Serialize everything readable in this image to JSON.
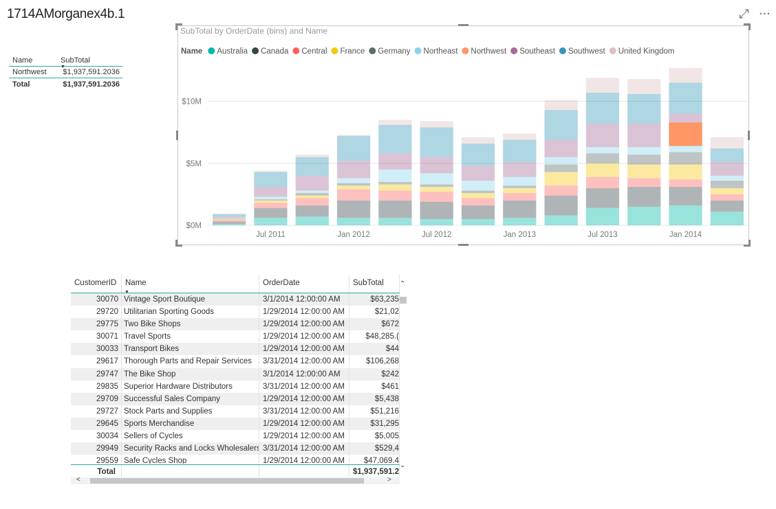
{
  "page": {
    "title": "1714AMorganex4b.1"
  },
  "top_icons": {
    "focus": "focus-mode-icon",
    "more": "more-options-icon",
    "focus_glyph": "⤢",
    "more_glyph": "···"
  },
  "mini_table": {
    "headers": [
      "Name",
      "SubTotal"
    ],
    "rows": [
      {
        "name": "Northwest",
        "subtotal": "$1,937,591.2036"
      }
    ],
    "total_label": "Total",
    "total_value": "$1,937,591.2036"
  },
  "chart": {
    "title": "SubTotal by OrderDate (bins) and Name",
    "legend_title": "Name"
  },
  "chart_data": {
    "type": "bar",
    "stacked": true,
    "title": "SubTotal by OrderDate (bins) and Name",
    "xlabel": "",
    "ylabel": "",
    "ylim": [
      0,
      12800000
    ],
    "yticks": [
      0,
      5000000,
      10000000
    ],
    "ytick_labels": [
      "$0M",
      "$5M",
      "$10M"
    ],
    "xtick_labels": [
      "Jul 2011",
      "Jan 2012",
      "Jul 2012",
      "Jan 2013",
      "Jul 2013",
      "Jan 2014"
    ],
    "xtick_after_bin": [
      1.5,
      3.5,
      5.5,
      7.5,
      9.5,
      11.5
    ],
    "categories": [
      "bin1",
      "bin2",
      "bin3",
      "bin4",
      "bin5",
      "bin6",
      "bin7",
      "bin8",
      "bin9",
      "bin10",
      "bin11",
      "bin12",
      "bin13"
    ],
    "legend_position": "top-left",
    "grid": true,
    "highlight_series": "Northwest",
    "series": [
      {
        "name": "Australia",
        "color": "#01b8aa",
        "values": [
          100000,
          600000,
          700000,
          600000,
          600000,
          500000,
          500000,
          600000,
          800000,
          1400000,
          1500000,
          1600000,
          1100000
        ]
      },
      {
        "name": "Canada",
        "color": "#374649",
        "values": [
          200000,
          800000,
          900000,
          1400000,
          1400000,
          1400000,
          1100000,
          1400000,
          1600000,
          1600000,
          1600000,
          1500000,
          900000
        ]
      },
      {
        "name": "Central",
        "color": "#fd625e",
        "values": [
          150000,
          400000,
          600000,
          900000,
          800000,
          800000,
          600000,
          600000,
          800000,
          900000,
          700000,
          600000,
          500000
        ]
      },
      {
        "name": "France",
        "color": "#f2c80f",
        "values": [
          50000,
          200000,
          200000,
          300000,
          500000,
          400000,
          400000,
          400000,
          1100000,
          1100000,
          1100000,
          1200000,
          500000
        ]
      },
      {
        "name": "Germany",
        "color": "#5f6b6d",
        "values": [
          50000,
          100000,
          200000,
          200000,
          200000,
          200000,
          200000,
          200000,
          600000,
          800000,
          800000,
          1000000,
          600000
        ]
      },
      {
        "name": "Northeast",
        "color": "#8ad4eb",
        "values": [
          50000,
          200000,
          200000,
          400000,
          1000000,
          900000,
          800000,
          700000,
          600000,
          500000,
          600000,
          500000,
          400000
        ]
      },
      {
        "name": "Northwest",
        "color": "#fe9666",
        "values": [
          0,
          0,
          0,
          0,
          0,
          0,
          0,
          0,
          0,
          0,
          0,
          1900000,
          0
        ]
      },
      {
        "name": "Southeast",
        "color": "#a66999",
        "values": [
          100000,
          800000,
          1200000,
          1400000,
          1300000,
          1300000,
          1200000,
          1200000,
          1400000,
          1900000,
          1900000,
          700000,
          1100000
        ]
      },
      {
        "name": "Southwest",
        "color": "#3599b8",
        "values": [
          200000,
          1200000,
          1500000,
          2000000,
          2300000,
          2400000,
          1800000,
          1800000,
          2400000,
          2500000,
          2400000,
          2500000,
          1100000
        ]
      },
      {
        "name": "United Kingdom",
        "color": "#dfbfbf",
        "values": [
          50000,
          100000,
          200000,
          100000,
          400000,
          500000,
          500000,
          500000,
          800000,
          1200000,
          1200000,
          1200000,
          900000
        ]
      }
    ]
  },
  "grid": {
    "headers": [
      "CustomerID",
      "Name",
      "OrderDate",
      "SubTotal"
    ],
    "rows": [
      {
        "id": "30070",
        "name": "Vintage Sport Boutique",
        "date": "3/1/2014 12:00:00 AM",
        "subtotal": "$63,235"
      },
      {
        "id": "29720",
        "name": "Utilitarian Sporting Goods",
        "date": "1/29/2014 12:00:00 AM",
        "subtotal": "$21,02"
      },
      {
        "id": "29775",
        "name": "Two Bike Shops",
        "date": "1/29/2014 12:00:00 AM",
        "subtotal": "$672"
      },
      {
        "id": "30071",
        "name": "Travel Sports",
        "date": "1/29/2014 12:00:00 AM",
        "subtotal": "$48,285.("
      },
      {
        "id": "30033",
        "name": "Transport Bikes",
        "date": "1/29/2014 12:00:00 AM",
        "subtotal": "$44"
      },
      {
        "id": "29617",
        "name": "Thorough Parts and Repair Services",
        "date": "3/31/2014 12:00:00 AM",
        "subtotal": "$106,268"
      },
      {
        "id": "29747",
        "name": "The Bike Shop",
        "date": "3/1/2014 12:00:00 AM",
        "subtotal": "$242"
      },
      {
        "id": "29835",
        "name": "Superior Hardware Distributors",
        "date": "3/31/2014 12:00:00 AM",
        "subtotal": "$461"
      },
      {
        "id": "29709",
        "name": "Successful Sales Company",
        "date": "1/29/2014 12:00:00 AM",
        "subtotal": "$5,438"
      },
      {
        "id": "29727",
        "name": "Stock Parts and Supplies",
        "date": "3/31/2014 12:00:00 AM",
        "subtotal": "$51,216"
      },
      {
        "id": "29645",
        "name": "Sports Merchandise",
        "date": "1/29/2014 12:00:00 AM",
        "subtotal": "$31,295"
      },
      {
        "id": "30034",
        "name": "Sellers of Cycles",
        "date": "1/29/2014 12:00:00 AM",
        "subtotal": "$5,005"
      },
      {
        "id": "29949",
        "name": "Security Racks and Locks Wholesalers",
        "date": "3/31/2014 12:00:00 AM",
        "subtotal": "$529,4"
      },
      {
        "id": "29559",
        "name": "Safe Cycles Shop",
        "date": "1/29/2014 12:00:00 AM",
        "subtotal": "$47,069.4"
      }
    ],
    "total_label": "Total",
    "total_value": "$1,937,591.2"
  }
}
